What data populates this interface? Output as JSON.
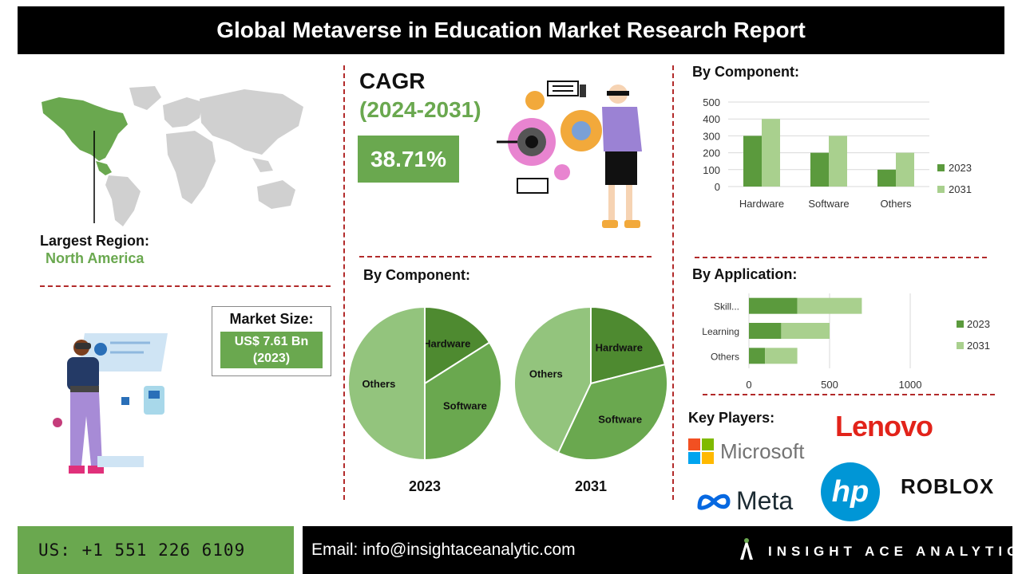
{
  "header": {
    "title": "Global Metaverse in Education Market Research Report"
  },
  "region": {
    "label": "Largest Region:",
    "value": "North America"
  },
  "market_size": {
    "label": "Market Size:",
    "value_line1": "US$ 7.61 Bn",
    "value_line2": "(2023)"
  },
  "cagr": {
    "title": "CAGR",
    "years": "(2024-2031)",
    "value": "38.71%"
  },
  "sections": {
    "component_bar_title": "By Component:",
    "component_pie_title": "By Component:",
    "application_title": "By Application:",
    "key_players_title": "Key Players:"
  },
  "chart_data": [
    {
      "type": "bar",
      "title": "By Component:",
      "categories": [
        "Hardware",
        "Software",
        "Others"
      ],
      "series": [
        {
          "name": "2023",
          "values": [
            300,
            200,
            100
          ],
          "color": "#5b9a3d"
        },
        {
          "name": "2031",
          "values": [
            400,
            300,
            200
          ],
          "color": "#a9d08e"
        }
      ],
      "ylim": [
        0,
        500
      ],
      "yticks": [
        0,
        100,
        200,
        300,
        400,
        500
      ],
      "grid": true,
      "legend": "right"
    },
    {
      "type": "pie",
      "title": "2023",
      "labels": [
        "Hardware",
        "Software",
        "Others"
      ],
      "values": [
        16,
        34,
        50
      ],
      "colors": [
        "#4e8a30",
        "#6aa84f",
        "#93c47d"
      ]
    },
    {
      "type": "pie",
      "title": "2031",
      "labels": [
        "Hardware",
        "Software",
        "Others"
      ],
      "values": [
        21,
        36,
        43
      ],
      "colors": [
        "#4e8a30",
        "#6aa84f",
        "#93c47d"
      ]
    },
    {
      "type": "bar",
      "orientation": "horizontal",
      "title": "By Application:",
      "categories": [
        "Skill...",
        "Learning",
        "Others"
      ],
      "series": [
        {
          "name": "2023",
          "values": [
            300,
            200,
            100
          ],
          "color": "#5b9a3d"
        },
        {
          "name": "2031",
          "values": [
            400,
            300,
            200
          ],
          "color": "#a9d08e"
        }
      ],
      "stacked": true,
      "xlim": [
        0,
        1000
      ],
      "xticks": [
        0,
        500,
        1000
      ],
      "legend": "right"
    }
  ],
  "key_players": [
    "Microsoft",
    "Lenovo",
    "Meta",
    "hp",
    "ROBLOX"
  ],
  "footer": {
    "phone": "US: +1 551 226 6109",
    "email": "Email: info@insightaceanalytic.com",
    "brand": "INSIGHT ACE ANALYTIC"
  },
  "colors": {
    "accent_green": "#6aa84f",
    "divider_red": "#b22a2a",
    "header_bg": "#000000"
  }
}
